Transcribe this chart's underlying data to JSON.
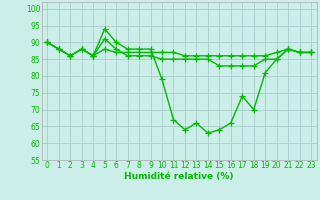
{
  "title": "",
  "xlabel": "Humidité relative (%)",
  "ylabel": "",
  "xlim": [
    -0.5,
    23.5
  ],
  "ylim": [
    55,
    102
  ],
  "yticks": [
    55,
    60,
    65,
    70,
    75,
    80,
    85,
    90,
    95,
    100
  ],
  "xticks": [
    0,
    1,
    2,
    3,
    4,
    5,
    6,
    7,
    8,
    9,
    10,
    11,
    12,
    13,
    14,
    15,
    16,
    17,
    18,
    19,
    20,
    21,
    22,
    23
  ],
  "bg_color": "#cceee8",
  "grid_color": "#aacccc",
  "line_color": "#00bb00",
  "line_width": 1.0,
  "marker": "+",
  "marker_size": 4,
  "marker_ew": 0.9,
  "tick_fontsize": 5.5,
  "xlabel_fontsize": 6.5,
  "series": [
    [
      90,
      88,
      86,
      88,
      86,
      94,
      90,
      88,
      88,
      88,
      79,
      67,
      64,
      66,
      63,
      64,
      66,
      74,
      70,
      81,
      85,
      88,
      87,
      87
    ],
    [
      90,
      88,
      86,
      88,
      86,
      91,
      88,
      86,
      86,
      86,
      85,
      85,
      85,
      85,
      85,
      83,
      83,
      83,
      83,
      85,
      85,
      88,
      87,
      87
    ],
    [
      90,
      88,
      86,
      88,
      86,
      88,
      87,
      87,
      87,
      87,
      87,
      87,
      86,
      86,
      86,
      86,
      86,
      86,
      86,
      86,
      87,
      88,
      87,
      87
    ]
  ]
}
